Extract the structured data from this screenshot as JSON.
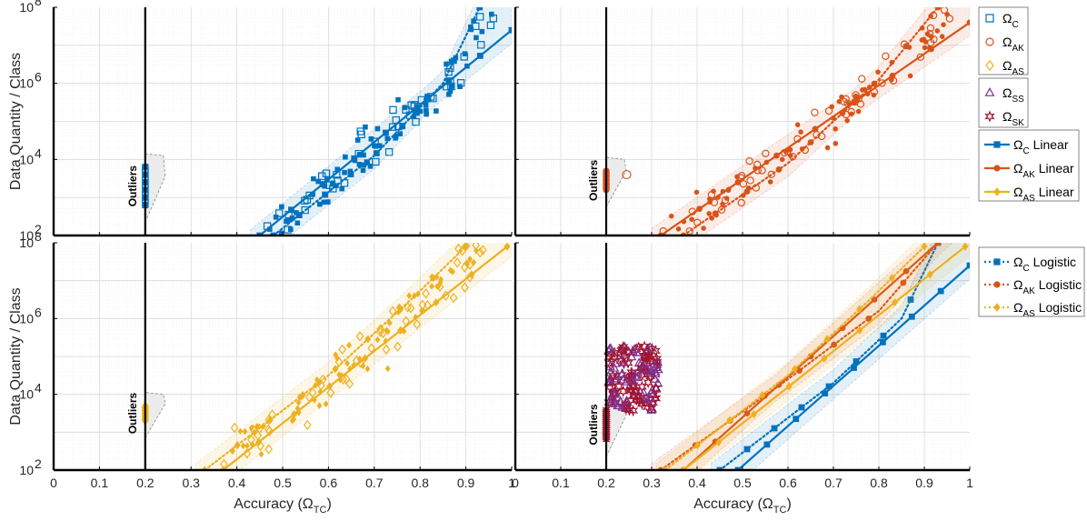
{
  "colors": {
    "C": "#0072BD",
    "AK": "#D95319",
    "AS": "#EDB120",
    "SS": "#7E2F8E",
    "SK": "#A2142F"
  },
  "legend_top": [
    {
      "key": "C",
      "base": "Ω",
      "sub": "C",
      "marker": "square-open",
      "line": "none"
    },
    {
      "key": "AK",
      "base": "Ω",
      "sub": "AK",
      "marker": "circle-open",
      "line": "none"
    },
    {
      "key": "AS",
      "base": "Ω",
      "sub": "AS",
      "marker": "diamond-open",
      "line": "none"
    },
    {
      "key": "SS",
      "base": "Ω",
      "sub": "SS",
      "marker": "triangle-open",
      "line": "none"
    },
    {
      "key": "SK",
      "base": "Ω",
      "sub": "SK",
      "marker": "hexagram-open",
      "line": "none"
    },
    {
      "key": "C",
      "base": "Ω",
      "sub": "C",
      "after": " Linear",
      "marker": "square",
      "line": "solid"
    },
    {
      "key": "AK",
      "base": "Ω",
      "sub": "AK",
      "after": " Linear",
      "marker": "circle",
      "line": "solid"
    },
    {
      "key": "AS",
      "base": "Ω",
      "sub": "AS",
      "after": " Linear",
      "marker": "diamond",
      "line": "solid"
    }
  ],
  "legend_bottom": [
    {
      "key": "C",
      "base": "Ω",
      "sub": "C",
      "after": " Logistic",
      "marker": "square",
      "line": "dotted"
    },
    {
      "key": "AK",
      "base": "Ω",
      "sub": "AK",
      "after": " Logistic",
      "marker": "circle",
      "line": "dotted"
    },
    {
      "key": "AS",
      "base": "Ω",
      "sub": "AS",
      "after": " Logistic",
      "marker": "diamond",
      "line": "dotted"
    }
  ],
  "chart_data": [
    {
      "type": "scatter",
      "panel": "top-left",
      "ylabel": "Data Quantity / Class",
      "xlabel": "",
      "xlim": [
        0,
        1
      ],
      "ylim_log10": [
        2,
        8
      ],
      "outlier_label": "Outliers",
      "outlier_x": 0.2,
      "outlier_series": "C",
      "outlier_range_log10": [
        2.8,
        3.8
      ],
      "series": [
        {
          "key": "C",
          "name": "Ω_C",
          "linear": [
            [
              0.45,
              2.0
            ],
            [
              1.0,
              7.4
            ]
          ],
          "logistic": [
            [
              0.48,
              2.0
            ],
            [
              0.7,
              4.1
            ],
            [
              0.85,
              6.0
            ],
            [
              0.93,
              8.0
            ]
          ]
        }
      ]
    },
    {
      "type": "scatter",
      "panel": "top-right",
      "ylabel": "",
      "xlabel": "",
      "xlim": [
        0,
        1
      ],
      "ylim_log10": [
        2,
        8
      ],
      "outlier_label": "Outliers",
      "outlier_x": 0.2,
      "outlier_series": "AK",
      "outlier_range_log10": [
        3.2,
        3.7
      ],
      "series": [
        {
          "key": "AK",
          "name": "Ω_AK",
          "linear": [
            [
              0.32,
              2.0
            ],
            [
              1.0,
              7.6
            ]
          ],
          "logistic": [
            [
              0.37,
              2.0
            ],
            [
              0.6,
              3.9
            ],
            [
              0.8,
              6.1
            ],
            [
              0.93,
              8.0
            ]
          ]
        }
      ]
    },
    {
      "type": "scatter",
      "panel": "bottom-left",
      "ylabel": "Data Quantity / Class",
      "xlabel": "Accuracy (Ω_TC)",
      "xlim": [
        0,
        1
      ],
      "ylim_log10": [
        2,
        8
      ],
      "outlier_label": "Outliers",
      "outlier_x": 0.2,
      "outlier_series": "AS",
      "outlier_range_log10": [
        3.3,
        3.7
      ],
      "series": [
        {
          "key": "AS",
          "name": "Ω_AS",
          "linear": [
            [
              0.37,
              2.0
            ],
            [
              0.99,
              7.9
            ]
          ],
          "logistic": [
            [
              0.33,
              2.0
            ],
            [
              0.6,
              4.5
            ],
            [
              0.78,
              6.5
            ],
            [
              0.9,
              7.9
            ]
          ]
        }
      ]
    },
    {
      "type": "scatter",
      "panel": "bottom-right",
      "ylabel": "",
      "xlabel": "Accuracy (Ω_TC)",
      "xlim": [
        0,
        1
      ],
      "ylim_log10": [
        2,
        8
      ],
      "outlier_label": "Outliers",
      "outlier_x": 0.2,
      "outlier_series": "SK",
      "outlier_range_log10": [
        2.8,
        3.6
      ],
      "cluster_series": [
        "SS",
        "SK"
      ],
      "series": [
        {
          "key": "C",
          "name": "Ω_C",
          "linear": [
            [
              0.49,
              2.0
            ],
            [
              1.0,
              7.4
            ]
          ],
          "logistic": [
            [
              0.45,
              2.0
            ],
            [
              0.7,
              4.3
            ],
            [
              0.85,
              6.0
            ],
            [
              0.93,
              8.0
            ]
          ]
        },
        {
          "key": "AK",
          "name": "Ω_AK",
          "linear": [
            [
              0.37,
              2.0
            ],
            [
              0.93,
              8.0
            ]
          ],
          "logistic": [
            [
              0.32,
              2.0
            ],
            [
              0.6,
              4.4
            ],
            [
              0.8,
              6.2
            ],
            [
              0.93,
              8.0
            ]
          ]
        },
        {
          "key": "AS",
          "name": "Ω_AS",
          "linear": [
            [
              0.37,
              2.0
            ],
            [
              0.99,
              7.9
            ]
          ],
          "logistic": [
            [
              0.33,
              2.0
            ],
            [
              0.6,
              4.5
            ],
            [
              0.78,
              6.5
            ],
            [
              0.9,
              7.9
            ]
          ]
        }
      ]
    }
  ],
  "axis": {
    "xticks": [
      0,
      0.1,
      0.2,
      0.3,
      0.4,
      0.5,
      0.6,
      0.7,
      0.8,
      0.9,
      1
    ],
    "xtick_labels": [
      "0",
      "0.1",
      "0.2",
      "0.3",
      "0.4",
      "0.5",
      "0.6",
      "0.7",
      "0.8",
      "0.9",
      "1"
    ],
    "ytick_exponents": [
      2,
      4,
      6,
      8
    ],
    "ytick_base": "10",
    "xlabel_base": "Accuracy (Ω",
    "xlabel_sub": "TC",
    "xlabel_end": ")",
    "ylabel": "Data Quantity / Class"
  }
}
